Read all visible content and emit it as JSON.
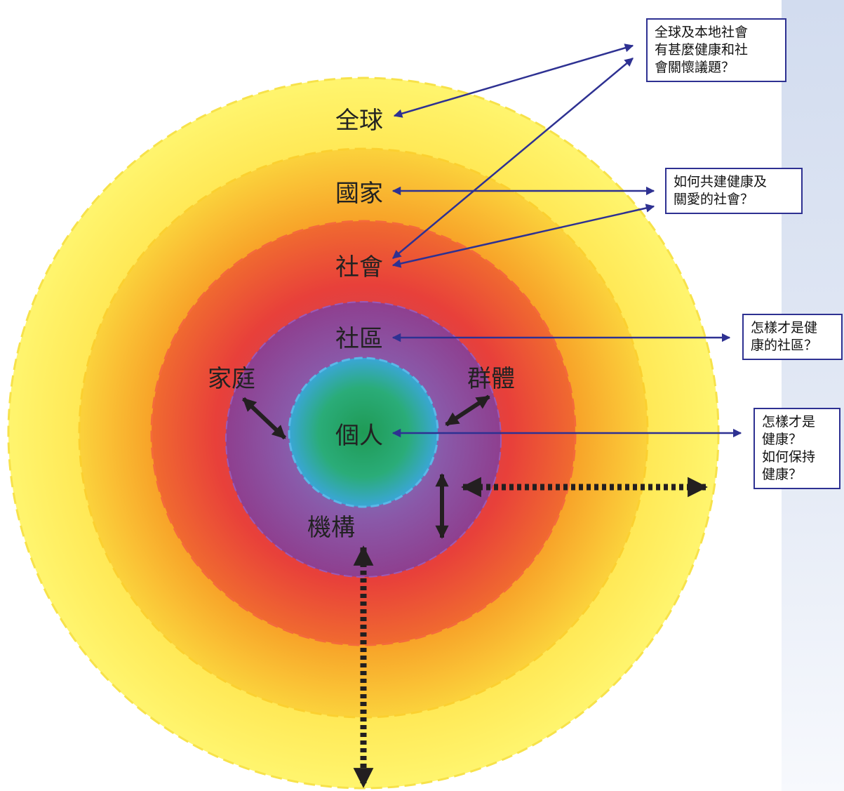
{
  "labels": {
    "global": "全球",
    "nation": "國家",
    "society": "社會",
    "community": "社區",
    "family": "家庭",
    "group": "群體",
    "individual": "個人",
    "institution": "機構"
  },
  "questions": {
    "global": [
      "全球及本地社會",
      "有甚麼健康和社",
      "會關懷議題？"
    ],
    "society": [
      "如何共建健康及",
      "關愛的社會？"
    ],
    "community": [
      "怎樣才是健",
      "康的社區？"
    ],
    "individual": [
      "怎樣才是",
      "健康？",
      "如何保持",
      "健康？"
    ]
  },
  "colors": {
    "global_ring": "#fff36a",
    "nation_ring": "#f6a023",
    "society_ring": "#e8483a",
    "community_ring": "#8a4a9c",
    "individual_core": "#2aa866",
    "individual_edge": "#3aa4d8",
    "arrow_blue": "#2e3192",
    "arrow_black": "#231f20",
    "box_border": "#2e3192"
  }
}
